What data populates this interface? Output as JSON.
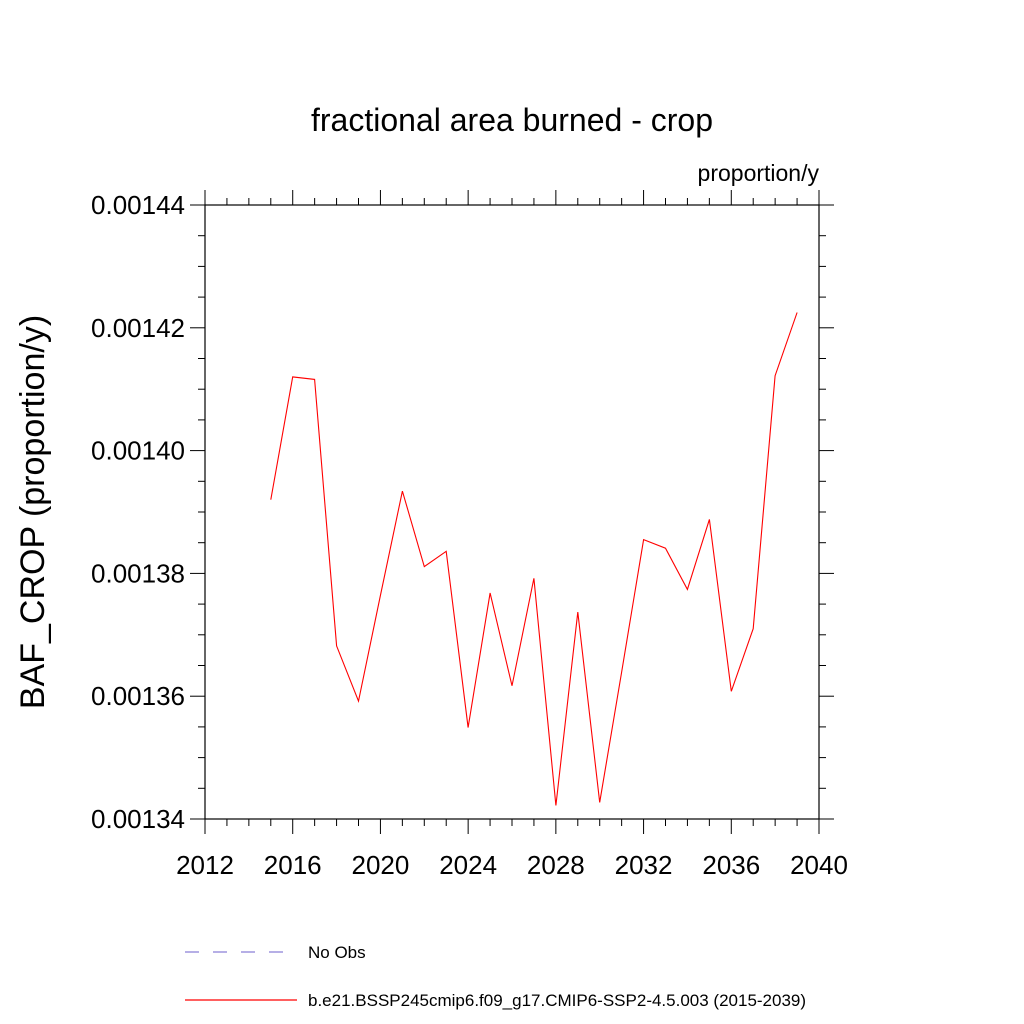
{
  "chart_data": {
    "type": "line",
    "title": "fractional area burned - crop",
    "units": "proportion/y",
    "ylabel": "BAF_CROP  (proportion/y)",
    "xlabel": "",
    "xlim": [
      2012,
      2040
    ],
    "ylim": [
      0.00134,
      0.00144
    ],
    "x_ticks": [
      "2012",
      "2016",
      "2020",
      "2024",
      "2028",
      "2032",
      "2036",
      "2040"
    ],
    "y_ticks": [
      "0.00134",
      "0.00136",
      "0.00138",
      "0.00140",
      "0.00142",
      "0.00144"
    ],
    "grid": false,
    "legend_position": "bottom",
    "series": [
      {
        "name": "No Obs",
        "style": "dashed",
        "color": "#8a7fd6",
        "x": [],
        "y": []
      },
      {
        "name": "b.e21.BSSP245cmip6.f09_g17.CMIP6-SSP2-4.5.003 (2015-2039)",
        "style": "solid",
        "color": "#ff0000",
        "x": [
          2015,
          2016,
          2017,
          2018,
          2019,
          2020,
          2021,
          2022,
          2023,
          2024,
          2025,
          2026,
          2027,
          2028,
          2029,
          2030,
          2031,
          2032,
          2033,
          2034,
          2035,
          2036,
          2037,
          2038,
          2039
        ],
        "y": [
          0.001392,
          0.001412,
          0.0014116,
          0.0013682,
          0.0013592,
          0.0013764,
          0.0013934,
          0.0013811,
          0.0013836,
          0.0013549,
          0.0013768,
          0.0013617,
          0.0013792,
          0.0013422,
          0.0013737,
          0.0013427,
          0.0013639,
          0.0013855,
          0.0013841,
          0.0013774,
          0.0013888,
          0.0013608,
          0.001371,
          0.0014122,
          0.0014225
        ]
      }
    ]
  }
}
